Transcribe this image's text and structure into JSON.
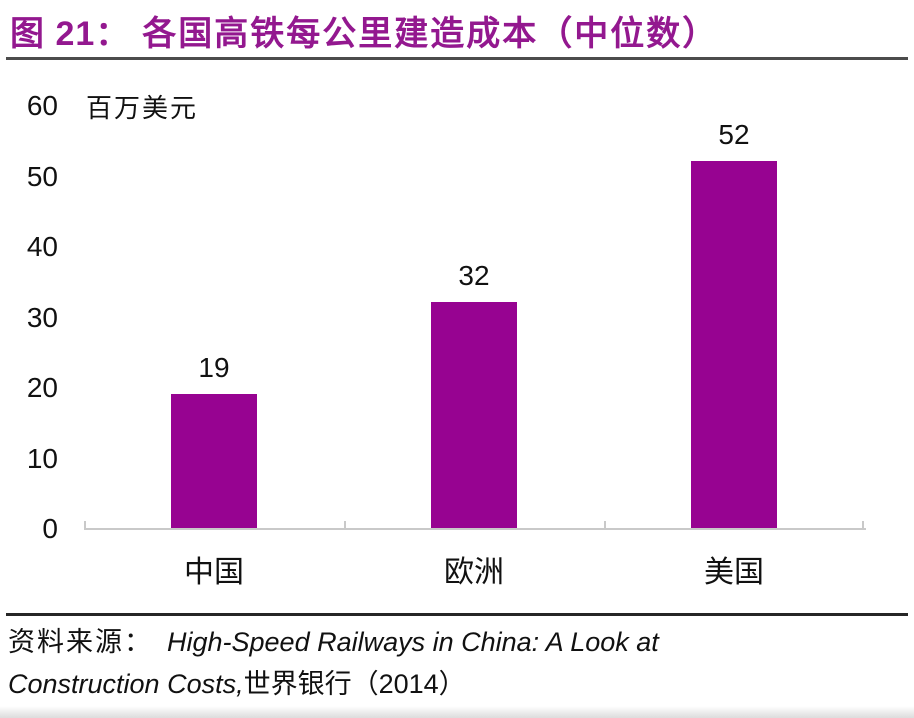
{
  "title": {
    "prefix": "图 21：",
    "text": "各国高铁每公里建造成本（中位数）"
  },
  "chart_data": {
    "type": "bar",
    "title": "各国高铁每公里建造成本（中位数）",
    "unit_label": "百万美元",
    "categories": [
      "中国",
      "欧洲",
      "美国"
    ],
    "values": [
      19,
      32,
      52
    ],
    "y_ticks": [
      0,
      10,
      20,
      30,
      40,
      50,
      60
    ],
    "ylim": [
      0,
      60
    ],
    "grid": false,
    "legend": "none",
    "bar_color": "#970391"
  },
  "footer": {
    "line1_prefix": "资料来源：",
    "line1_italic": "High-Speed Railways in China: A Look at",
    "line2_italic": "Construction Costs,",
    "line2_suffix": "世界银行（2014）"
  },
  "colors": {
    "title": "#93188F",
    "bar": "#970391",
    "axis_line": "#C9C9C9",
    "text": "#111111"
  }
}
